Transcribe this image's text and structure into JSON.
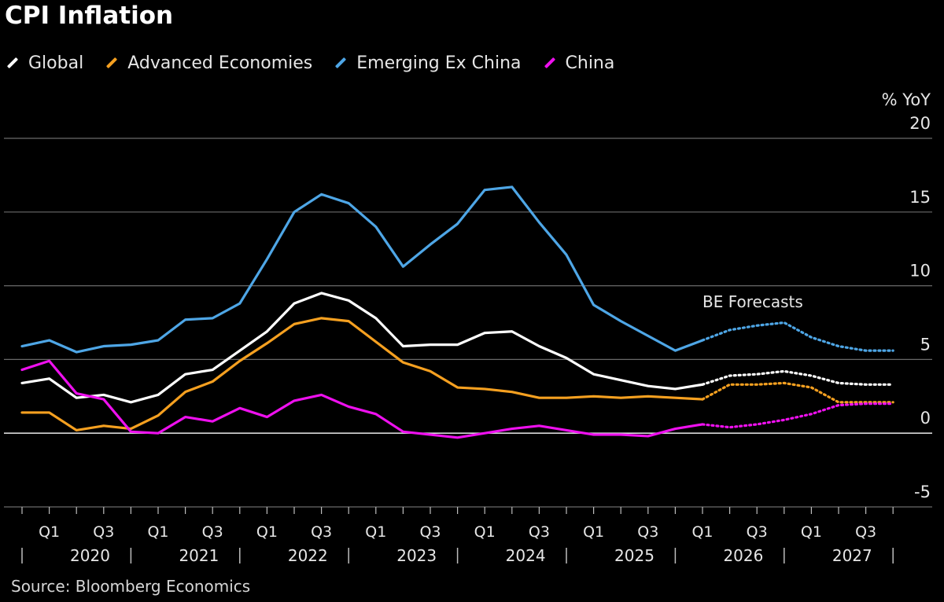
{
  "title": "CPI Inflation",
  "source": "Source: Bloomberg Economics",
  "legend": [
    {
      "label": "Global",
      "color": "#ffffff"
    },
    {
      "label": "Advanced Economies",
      "color": "#f5a020"
    },
    {
      "label": "Emerging Ex China",
      "color": "#4ea6e6"
    },
    {
      "label": "China",
      "color": "#ee10ee"
    }
  ],
  "chart_data": {
    "type": "line",
    "title": "CPI Inflation",
    "ylabel": "% YoY",
    "ylim": [
      -5,
      20
    ],
    "yticks": [
      20,
      15,
      10,
      5,
      0,
      -5
    ],
    "grid": true,
    "legend_position": "top-left",
    "annotation": "BE Forecasts",
    "x": [
      "2019-Q4",
      "2020-Q1",
      "2020-Q2",
      "2020-Q3",
      "2020-Q4",
      "2021-Q1",
      "2021-Q2",
      "2021-Q3",
      "2021-Q4",
      "2022-Q1",
      "2022-Q2",
      "2022-Q3",
      "2022-Q4",
      "2023-Q1",
      "2023-Q2",
      "2023-Q3",
      "2023-Q4",
      "2024-Q1",
      "2024-Q2",
      "2024-Q3",
      "2024-Q4",
      "2025-Q1",
      "2025-Q2",
      "2025-Q3",
      "2025-Q4",
      "2026-Q1",
      "2026-Q2",
      "2026-Q3",
      "2026-Q4",
      "2027-Q1",
      "2027-Q2",
      "2027-Q3",
      "2027-Q4"
    ],
    "forecast_start": "2026-Q1",
    "quarter_labels": [
      "Q1",
      "Q3",
      "Q1",
      "Q3",
      "Q1",
      "Q3",
      "Q1",
      "Q3",
      "Q1",
      "Q3",
      "Q1",
      "Q3",
      "Q1",
      "Q3",
      "Q1",
      "Q3"
    ],
    "year_labels": [
      "2020",
      "2021",
      "2022",
      "2023",
      "2024",
      "2025",
      "2026",
      "2027"
    ],
    "series": [
      {
        "name": "Global",
        "color": "#ffffff",
        "values": [
          3.4,
          3.7,
          2.4,
          2.6,
          2.1,
          2.6,
          4.0,
          4.3,
          5.6,
          6.9,
          8.8,
          9.5,
          9.0,
          7.8,
          5.9,
          6.0,
          6.0,
          6.8,
          6.9,
          5.9,
          5.1,
          4.0,
          3.6,
          3.2,
          3.0,
          3.3,
          3.9,
          4.0,
          4.2,
          3.9,
          3.4,
          3.3,
          3.3
        ]
      },
      {
        "name": "Advanced Economies",
        "color": "#f5a020",
        "values": [
          1.4,
          1.4,
          0.2,
          0.5,
          0.3,
          1.2,
          2.8,
          3.5,
          4.9,
          6.1,
          7.4,
          7.8,
          7.6,
          6.2,
          4.8,
          4.2,
          3.1,
          3.0,
          2.8,
          2.4,
          2.4,
          2.5,
          2.4,
          2.5,
          2.4,
          2.3,
          3.3,
          3.3,
          3.4,
          3.1,
          2.1,
          2.1,
          2.1
        ]
      },
      {
        "name": "Emerging Ex China",
        "color": "#4ea6e6",
        "values": [
          5.9,
          6.3,
          5.5,
          5.9,
          6.0,
          6.3,
          7.7,
          7.8,
          8.8,
          11.8,
          15.0,
          16.2,
          15.6,
          14.0,
          11.3,
          12.8,
          14.2,
          16.5,
          16.7,
          14.3,
          12.1,
          8.7,
          7.6,
          6.6,
          5.6,
          6.3,
          7.0,
          7.3,
          7.5,
          6.5,
          5.9,
          5.6,
          5.6
        ]
      },
      {
        "name": "China",
        "color": "#ee10ee",
        "values": [
          4.3,
          4.9,
          2.7,
          2.3,
          0.1,
          0.0,
          1.1,
          0.8,
          1.7,
          1.1,
          2.2,
          2.6,
          1.8,
          1.3,
          0.1,
          -0.1,
          -0.3,
          0.0,
          0.3,
          0.5,
          0.2,
          -0.1,
          -0.1,
          -0.2,
          0.3,
          0.6,
          0.4,
          0.6,
          0.9,
          1.3,
          1.9,
          2.0,
          2.0
        ]
      }
    ]
  }
}
